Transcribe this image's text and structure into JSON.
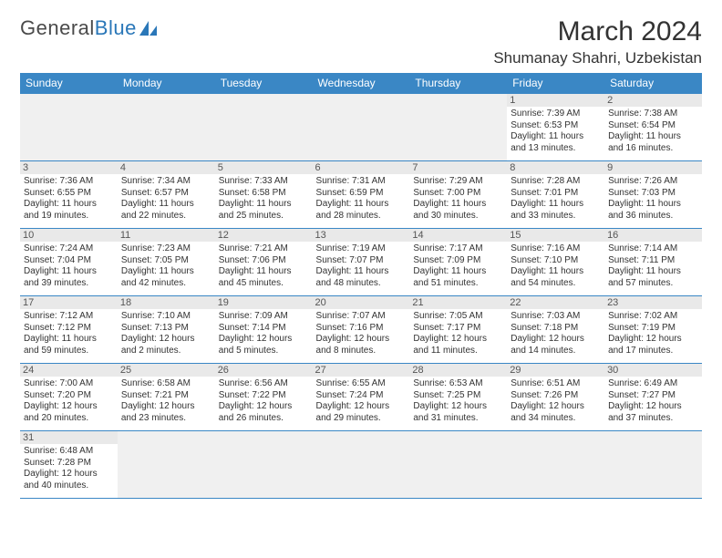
{
  "logo": {
    "text1": "General",
    "text2": "Blue"
  },
  "title": "March 2024",
  "location": "Shumanay Shahri, Uzbekistan",
  "weekdays": [
    "Sunday",
    "Monday",
    "Tuesday",
    "Wednesday",
    "Thursday",
    "Friday",
    "Saturday"
  ],
  "colors": {
    "header_bg": "#3a87c5",
    "header_text": "#ffffff",
    "border": "#3a87c5",
    "empty_bg": "#f0f0f0",
    "daynum_bg": "#e9e9e9",
    "text": "#333333",
    "logo_blue": "#2a77b8"
  },
  "grid": [
    [
      null,
      null,
      null,
      null,
      null,
      {
        "n": "1",
        "sr": "7:39 AM",
        "ss": "6:53 PM",
        "dl": "11 hours and 13 minutes."
      },
      {
        "n": "2",
        "sr": "7:38 AM",
        "ss": "6:54 PM",
        "dl": "11 hours and 16 minutes."
      }
    ],
    [
      {
        "n": "3",
        "sr": "7:36 AM",
        "ss": "6:55 PM",
        "dl": "11 hours and 19 minutes."
      },
      {
        "n": "4",
        "sr": "7:34 AM",
        "ss": "6:57 PM",
        "dl": "11 hours and 22 minutes."
      },
      {
        "n": "5",
        "sr": "7:33 AM",
        "ss": "6:58 PM",
        "dl": "11 hours and 25 minutes."
      },
      {
        "n": "6",
        "sr": "7:31 AM",
        "ss": "6:59 PM",
        "dl": "11 hours and 28 minutes."
      },
      {
        "n": "7",
        "sr": "7:29 AM",
        "ss": "7:00 PM",
        "dl": "11 hours and 30 minutes."
      },
      {
        "n": "8",
        "sr": "7:28 AM",
        "ss": "7:01 PM",
        "dl": "11 hours and 33 minutes."
      },
      {
        "n": "9",
        "sr": "7:26 AM",
        "ss": "7:03 PM",
        "dl": "11 hours and 36 minutes."
      }
    ],
    [
      {
        "n": "10",
        "sr": "7:24 AM",
        "ss": "7:04 PM",
        "dl": "11 hours and 39 minutes."
      },
      {
        "n": "11",
        "sr": "7:23 AM",
        "ss": "7:05 PM",
        "dl": "11 hours and 42 minutes."
      },
      {
        "n": "12",
        "sr": "7:21 AM",
        "ss": "7:06 PM",
        "dl": "11 hours and 45 minutes."
      },
      {
        "n": "13",
        "sr": "7:19 AM",
        "ss": "7:07 PM",
        "dl": "11 hours and 48 minutes."
      },
      {
        "n": "14",
        "sr": "7:17 AM",
        "ss": "7:09 PM",
        "dl": "11 hours and 51 minutes."
      },
      {
        "n": "15",
        "sr": "7:16 AM",
        "ss": "7:10 PM",
        "dl": "11 hours and 54 minutes."
      },
      {
        "n": "16",
        "sr": "7:14 AM",
        "ss": "7:11 PM",
        "dl": "11 hours and 57 minutes."
      }
    ],
    [
      {
        "n": "17",
        "sr": "7:12 AM",
        "ss": "7:12 PM",
        "dl": "11 hours and 59 minutes."
      },
      {
        "n": "18",
        "sr": "7:10 AM",
        "ss": "7:13 PM",
        "dl": "12 hours and 2 minutes."
      },
      {
        "n": "19",
        "sr": "7:09 AM",
        "ss": "7:14 PM",
        "dl": "12 hours and 5 minutes."
      },
      {
        "n": "20",
        "sr": "7:07 AM",
        "ss": "7:16 PM",
        "dl": "12 hours and 8 minutes."
      },
      {
        "n": "21",
        "sr": "7:05 AM",
        "ss": "7:17 PM",
        "dl": "12 hours and 11 minutes."
      },
      {
        "n": "22",
        "sr": "7:03 AM",
        "ss": "7:18 PM",
        "dl": "12 hours and 14 minutes."
      },
      {
        "n": "23",
        "sr": "7:02 AM",
        "ss": "7:19 PM",
        "dl": "12 hours and 17 minutes."
      }
    ],
    [
      {
        "n": "24",
        "sr": "7:00 AM",
        "ss": "7:20 PM",
        "dl": "12 hours and 20 minutes."
      },
      {
        "n": "25",
        "sr": "6:58 AM",
        "ss": "7:21 PM",
        "dl": "12 hours and 23 minutes."
      },
      {
        "n": "26",
        "sr": "6:56 AM",
        "ss": "7:22 PM",
        "dl": "12 hours and 26 minutes."
      },
      {
        "n": "27",
        "sr": "6:55 AM",
        "ss": "7:24 PM",
        "dl": "12 hours and 29 minutes."
      },
      {
        "n": "28",
        "sr": "6:53 AM",
        "ss": "7:25 PM",
        "dl": "12 hours and 31 minutes."
      },
      {
        "n": "29",
        "sr": "6:51 AM",
        "ss": "7:26 PM",
        "dl": "12 hours and 34 minutes."
      },
      {
        "n": "30",
        "sr": "6:49 AM",
        "ss": "7:27 PM",
        "dl": "12 hours and 37 minutes."
      }
    ],
    [
      {
        "n": "31",
        "sr": "6:48 AM",
        "ss": "7:28 PM",
        "dl": "12 hours and 40 minutes."
      },
      null,
      null,
      null,
      null,
      null,
      null
    ]
  ],
  "labels": {
    "sunrise": "Sunrise:",
    "sunset": "Sunset:",
    "daylight": "Daylight:"
  }
}
